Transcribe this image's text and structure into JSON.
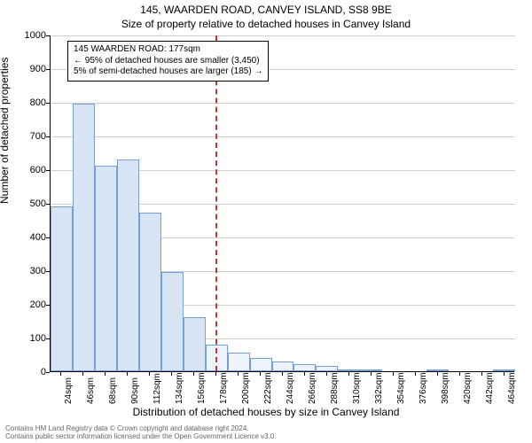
{
  "title": "145, WAARDEN ROAD, CANVEY ISLAND, SS8 9BE",
  "subtitle": "Size of property relative to detached houses in Canvey Island",
  "ylabel": "Number of detached properties",
  "xlabel": "Distribution of detached houses by size in Canvey Island",
  "info_box": {
    "line1": "145 WAARDEN ROAD: 177sqm",
    "line2": "← 95% of detached houses are smaller (3,450)",
    "line3": "5% of semi-detached houses are larger (185) →"
  },
  "attribution": {
    "line1": "Contains HM Land Registry data © Crown copyright and database right 2024.",
    "line2": "Contains public sector information licensed under the Open Government Licence v3.0."
  },
  "histogram": {
    "type": "histogram",
    "xlim": [
      13,
      475
    ],
    "ylim": [
      0,
      1000
    ],
    "ytick_step": 100,
    "grid_color": "#cfcfcf",
    "bar_fill_left": "#d7e4f4",
    "bar_fill_right": "#eef3fb",
    "bar_border": "#74a0d8",
    "marker_x": 177,
    "marker_color": "#c33",
    "background": "#ffffff",
    "bin_width": 22,
    "categories": [
      "24sqm",
      "46sqm",
      "68sqm",
      "90sqm",
      "112sqm",
      "134sqm",
      "156sqm",
      "178sqm",
      "200sqm",
      "222sqm",
      "244sqm",
      "266sqm",
      "288sqm",
      "310sqm",
      "332sqm",
      "354sqm",
      "376sqm",
      "398sqm",
      "420sqm",
      "442sqm",
      "464sqm"
    ],
    "values": [
      490,
      795,
      610,
      630,
      470,
      295,
      160,
      80,
      55,
      40,
      30,
      20,
      15,
      5,
      2,
      0,
      0,
      5,
      0,
      0,
      5
    ]
  }
}
